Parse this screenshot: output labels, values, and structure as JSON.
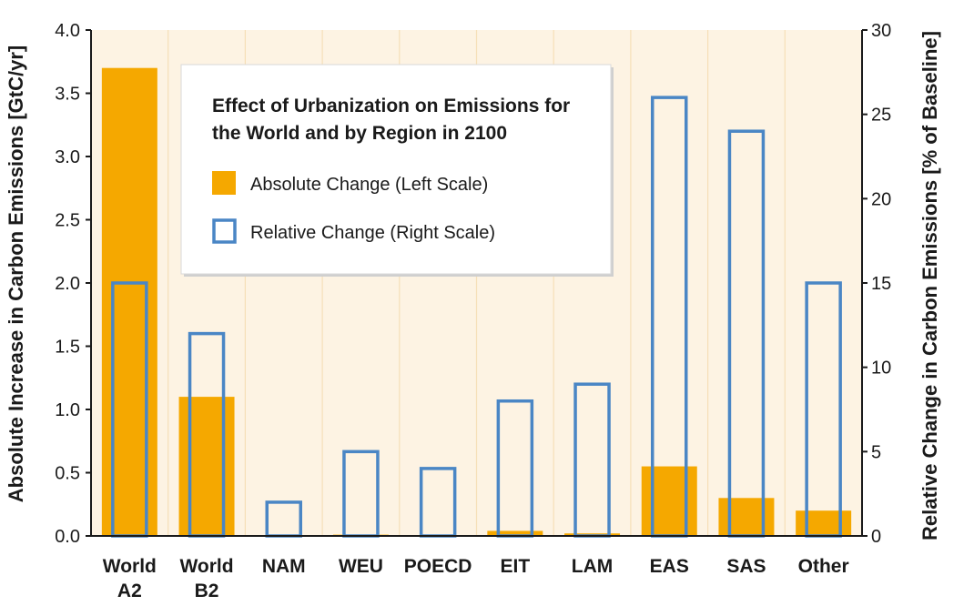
{
  "chart_data": {
    "type": "bar",
    "legend": {
      "title_line1": "Effect of Urbanization on Emissions for",
      "title_line2": "the World and by Region in 2100",
      "placement": "top-center"
    },
    "categories": [
      {
        "line1": "World",
        "line2": "A2"
      },
      {
        "line1": "World",
        "line2": "B2"
      },
      {
        "line1": "NAM",
        "line2": ""
      },
      {
        "line1": "WEU",
        "line2": ""
      },
      {
        "line1": "POECD",
        "line2": ""
      },
      {
        "line1": "EIT",
        "line2": ""
      },
      {
        "line1": "LAM",
        "line2": ""
      },
      {
        "line1": "EAS",
        "line2": ""
      },
      {
        "line1": "SAS",
        "line2": ""
      },
      {
        "line1": "Other",
        "line2": ""
      }
    ],
    "series": [
      {
        "name": "Absolute Change (Left Scale)",
        "axis": "left",
        "style": "filled",
        "color": "#f5a800",
        "values": [
          3.7,
          1.1,
          0.0,
          0.01,
          0.0,
          0.04,
          0.02,
          0.55,
          0.3,
          0.2
        ]
      },
      {
        "name": "Relative Change (Right Scale)",
        "axis": "right",
        "style": "outline",
        "color": "#4a86c5",
        "values": [
          15,
          12,
          2,
          5,
          4,
          8,
          9,
          26,
          24,
          15
        ]
      }
    ],
    "ylabel_left": "Absolute Increase in Carbon Emissions [GtC/yr]",
    "ylabel_right": "Relative Change in Carbon Emissions [% of Baseline]",
    "ylim_left": [
      0,
      4.0
    ],
    "ylim_right": [
      0,
      30
    ],
    "yticks_left": [
      "0.0",
      "0.5",
      "1.0",
      "1.5",
      "2.0",
      "2.5",
      "3.0",
      "3.5",
      "4.0"
    ],
    "yticks_right": [
      "0",
      "5",
      "10",
      "15",
      "20",
      "25",
      "30"
    ],
    "grid": "vertical",
    "background_color": "#fdf3e3",
    "grid_color": "#f6dfb8"
  }
}
